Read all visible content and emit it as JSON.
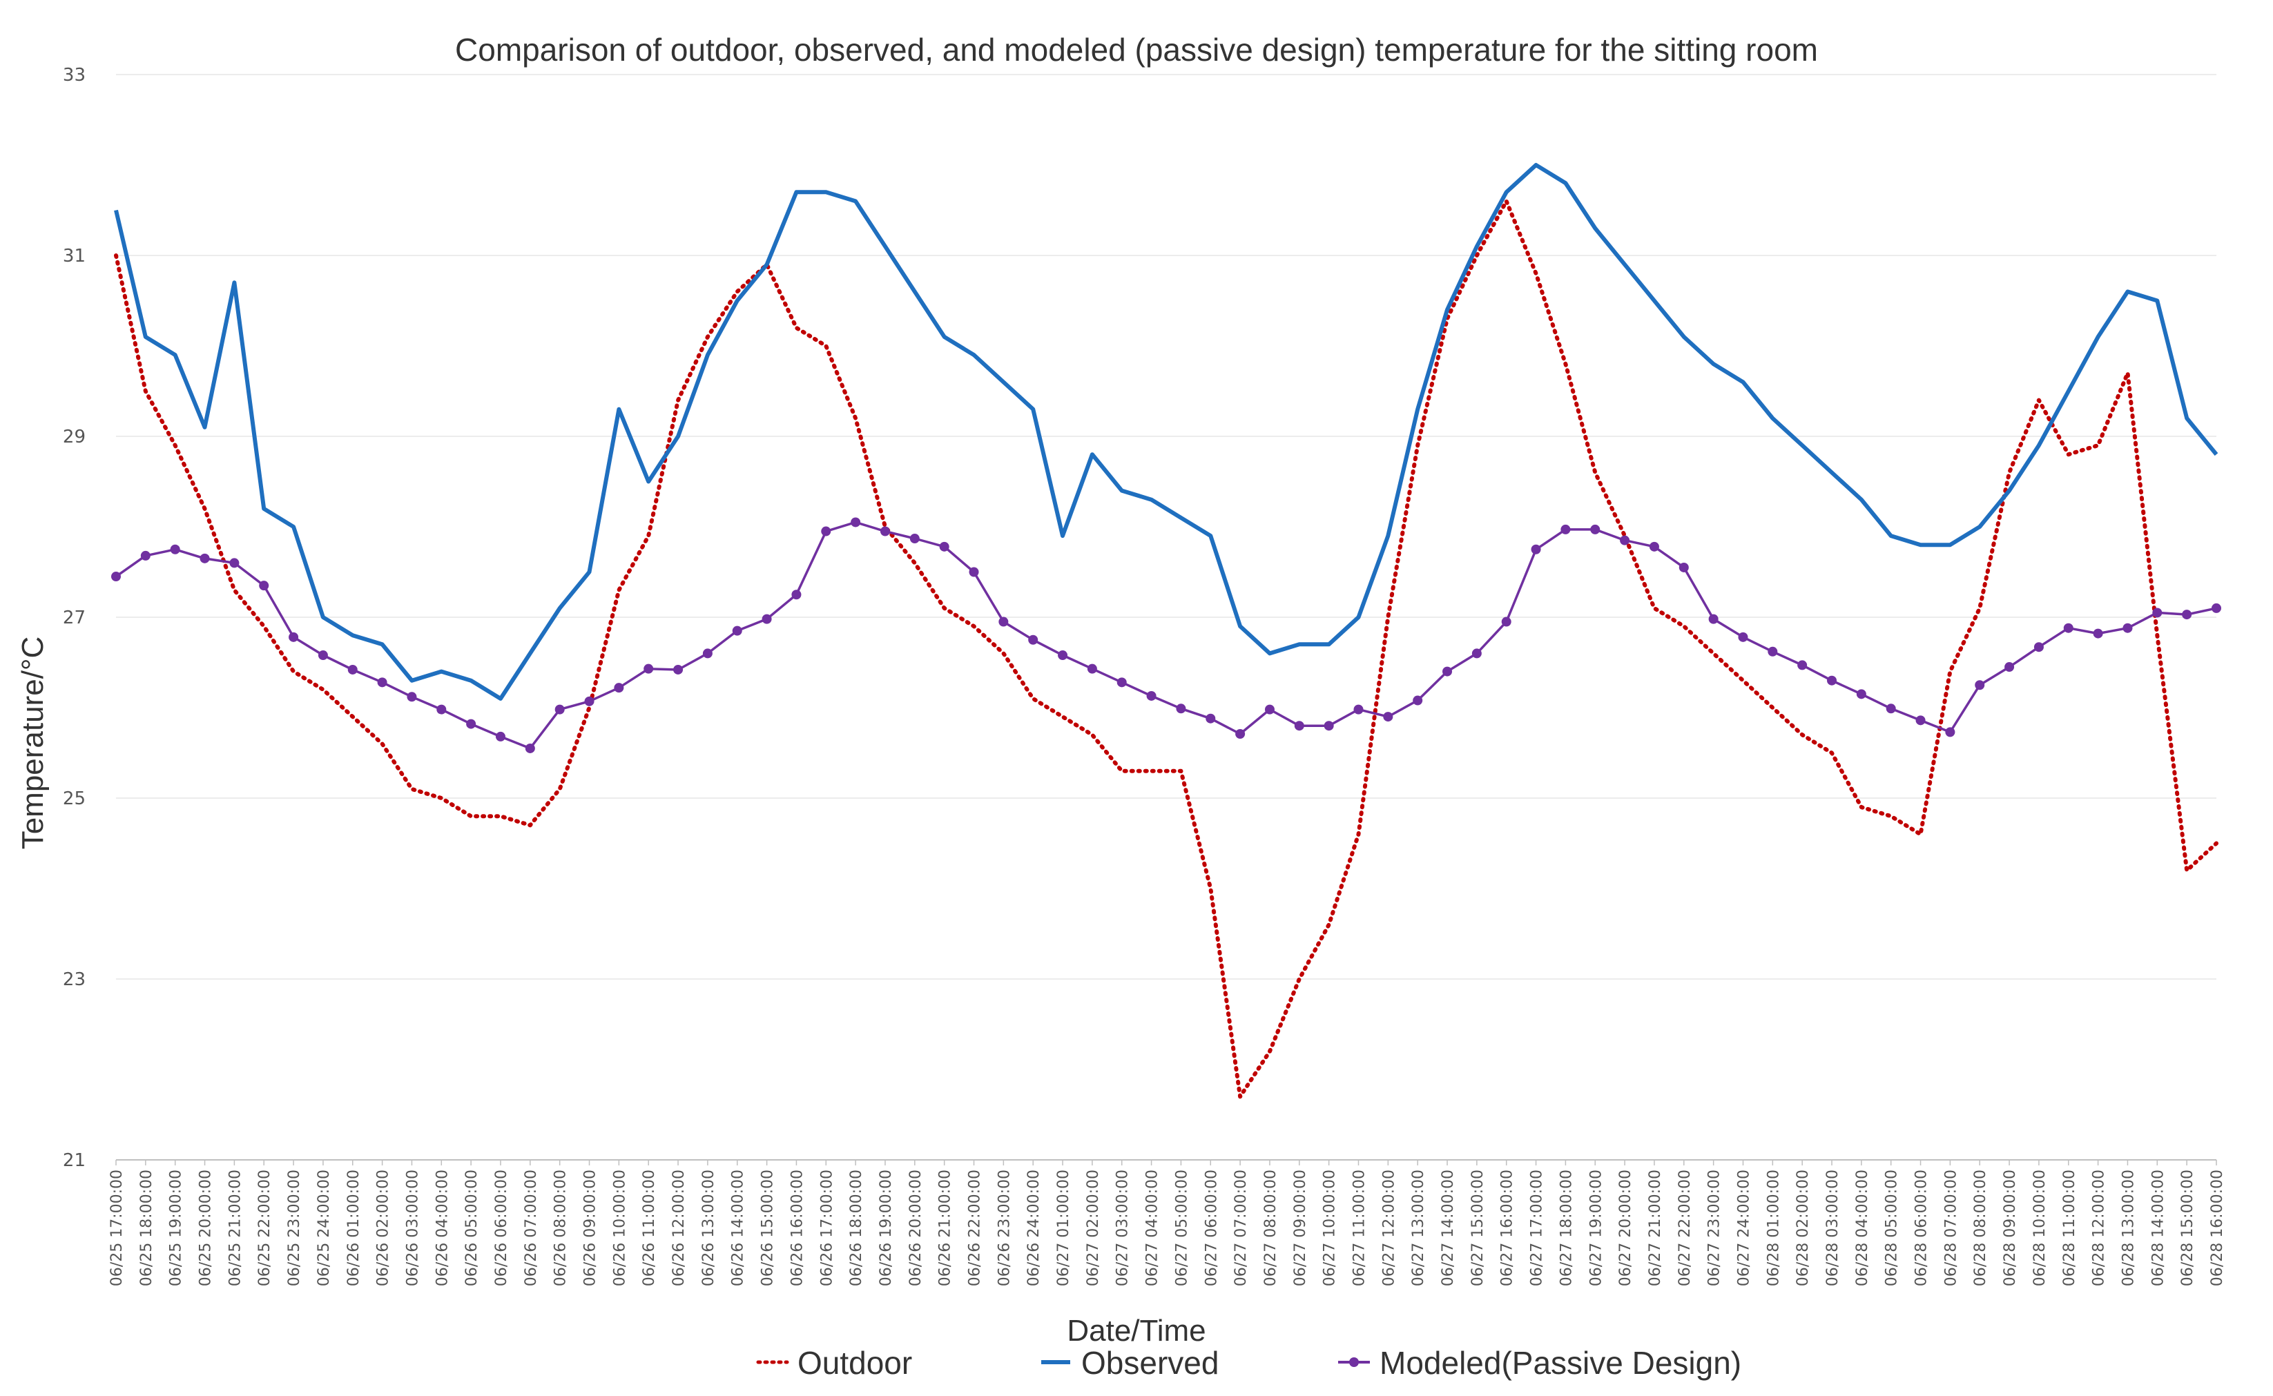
{
  "chart_data": {
    "type": "line",
    "title": "Comparison of outdoor, observed, and modeled (passive design) temperature for the sitting room",
    "xlabel": "Date/Time",
    "ylabel": "Temperature/°C",
    "ylim": [
      21,
      33
    ],
    "yticks": [
      "21",
      "23",
      "25",
      "27",
      "29",
      "31",
      "33"
    ],
    "grid": true,
    "legend_position": "bottom",
    "categories": [
      "06/25 17:00:00",
      "06/25 18:00:00",
      "06/25 19:00:00",
      "06/25 20:00:00",
      "06/25 21:00:00",
      "06/25 22:00:00",
      "06/25 23:00:00",
      "06/25 24:00:00",
      "06/26 01:00:00",
      "06/26 02:00:00",
      "06/26 03:00:00",
      "06/26 04:00:00",
      "06/26 05:00:00",
      "06/26 06:00:00",
      "06/26 07:00:00",
      "06/26 08:00:00",
      "06/26 09:00:00",
      "06/26 10:00:00",
      "06/26 11:00:00",
      "06/26 12:00:00",
      "06/26 13:00:00",
      "06/26 14:00:00",
      "06/26 15:00:00",
      "06/26 16:00:00",
      "06/26 17:00:00",
      "06/26 18:00:00",
      "06/26 19:00:00",
      "06/26 20:00:00",
      "06/26 21:00:00",
      "06/26 22:00:00",
      "06/26 23:00:00",
      "06/26 24:00:00",
      "06/27 01:00:00",
      "06/27 02:00:00",
      "06/27 03:00:00",
      "06/27 04:00:00",
      "06/27 05:00:00",
      "06/27 06:00:00",
      "06/27 07:00:00",
      "06/27 08:00:00",
      "06/27 09:00:00",
      "06/27 10:00:00",
      "06/27 11:00:00",
      "06/27 12:00:00",
      "06/27 13:00:00",
      "06/27 14:00:00",
      "06/27 15:00:00",
      "06/27 16:00:00",
      "06/27 17:00:00",
      "06/27 18:00:00",
      "06/27 19:00:00",
      "06/27 20:00:00",
      "06/27 21:00:00",
      "06/27 22:00:00",
      "06/27 23:00:00",
      "06/27 24:00:00",
      "06/28 01:00:00",
      "06/28 02:00:00",
      "06/28 03:00:00",
      "06/28 04:00:00",
      "06/28 05:00:00",
      "06/28 06:00:00",
      "06/28 07:00:00",
      "06/28 08:00:00",
      "06/28 09:00:00",
      "06/28 10:00:00",
      "06/28 11:00:00",
      "06/28 12:00:00",
      "06/28 13:00:00",
      "06/28 14:00:00",
      "06/28 15:00:00",
      "06/28 16:00:00"
    ],
    "series": [
      {
        "name": "Outdoor",
        "color": "#c00000",
        "style": "dotted",
        "values": [
          31.0,
          29.5,
          28.9,
          28.2,
          27.3,
          26.9,
          26.4,
          26.2,
          25.9,
          25.6,
          25.1,
          25.0,
          24.8,
          24.8,
          24.7,
          25.1,
          26.0,
          27.3,
          27.9,
          29.4,
          30.1,
          30.6,
          30.9,
          30.2,
          30.0,
          29.2,
          28.0,
          27.6,
          27.1,
          26.9,
          26.6,
          26.1,
          25.9,
          25.7,
          25.3,
          25.3,
          25.3,
          24.0,
          21.7,
          22.2,
          23.0,
          23.6,
          24.6,
          27.0,
          28.9,
          30.3,
          31.0,
          31.6,
          30.8,
          29.8,
          28.6,
          27.9,
          27.1,
          26.9,
          26.6,
          26.3,
          26.0,
          25.7,
          25.5,
          24.9,
          24.8,
          24.6,
          26.4,
          27.1,
          28.6,
          29.4,
          28.8,
          28.9,
          29.7,
          26.8,
          24.2,
          24.5
        ]
      },
      {
        "name": "Observed",
        "color": "#1f6fbf",
        "style": "solid",
        "values": [
          31.5,
          30.1,
          29.9,
          29.1,
          30.7,
          28.2,
          28.0,
          27.0,
          26.8,
          26.7,
          26.3,
          26.4,
          26.3,
          26.1,
          26.6,
          27.1,
          27.5,
          29.3,
          28.5,
          29.0,
          29.9,
          30.5,
          30.9,
          31.7,
          31.7,
          31.6,
          31.1,
          30.6,
          30.1,
          29.9,
          29.6,
          29.3,
          27.9,
          28.8,
          28.4,
          28.3,
          28.1,
          27.9,
          26.9,
          26.6,
          26.7,
          26.7,
          27.0,
          27.9,
          29.3,
          30.4,
          31.1,
          31.7,
          32.0,
          31.8,
          31.3,
          30.9,
          30.5,
          30.1,
          29.8,
          29.6,
          29.2,
          28.9,
          28.6,
          28.3,
          27.9,
          27.8,
          27.8,
          28.0,
          28.4,
          28.9,
          29.5,
          30.1,
          30.6,
          30.5,
          29.2,
          28.8
        ]
      },
      {
        "name": "Modeled(Passive Design)",
        "color": "#7030a0",
        "style": "solid-marker",
        "values": [
          27.45,
          27.68,
          27.75,
          27.65,
          27.6,
          27.35,
          26.78,
          26.58,
          26.42,
          26.28,
          26.12,
          25.98,
          25.82,
          25.68,
          25.55,
          25.98,
          26.07,
          26.22,
          26.43,
          26.42,
          26.6,
          26.85,
          26.98,
          27.25,
          27.95,
          28.05,
          27.95,
          27.87,
          27.78,
          27.5,
          26.95,
          26.75,
          26.58,
          26.43,
          26.28,
          26.13,
          25.99,
          25.88,
          25.71,
          25.98,
          25.8,
          25.8,
          25.98,
          25.9,
          26.08,
          26.4,
          26.6,
          26.95,
          27.75,
          27.97,
          27.97,
          27.85,
          27.78,
          27.55,
          26.98,
          26.78,
          26.62,
          26.47,
          26.3,
          26.15,
          25.99,
          25.86,
          25.73,
          26.25,
          26.45,
          26.67,
          26.88,
          26.82,
          26.88,
          27.05,
          27.03,
          27.1
        ]
      }
    ]
  }
}
